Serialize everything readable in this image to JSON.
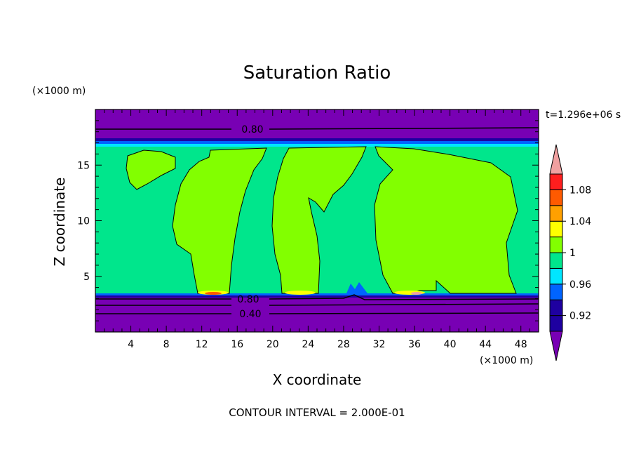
{
  "chart_data": {
    "type": "heatmap",
    "title": "Saturation Ratio",
    "xlabel": "X coordinate",
    "ylabel": "Z coordinate",
    "x_unit": "(×1000 m)",
    "y_unit": "(×1000 m)",
    "time_label": "t=1.296e+06 s",
    "footer": "CONTOUR INTERVAL = 2.000E-01",
    "xlim": [
      0,
      50
    ],
    "ylim": [
      0,
      20
    ],
    "x_ticks": [
      4,
      8,
      12,
      16,
      20,
      24,
      28,
      32,
      36,
      40,
      44,
      48
    ],
    "y_ticks": [
      5,
      10,
      15
    ],
    "x_tick_labels": [
      "4",
      "8",
      "12",
      "16",
      "20",
      "24",
      "28",
      "32",
      "36",
      "40",
      "44",
      "48"
    ],
    "y_tick_labels": [
      "5",
      "10",
      "15"
    ],
    "colorbar": {
      "levels": [
        0.9,
        0.92,
        0.94,
        0.96,
        0.98,
        1.0,
        1.02,
        1.04,
        1.06,
        1.08,
        1.1
      ],
      "tick_values": [
        0.92,
        0.96,
        1.0,
        1.04,
        1.08
      ],
      "tick_labels": [
        "0.92",
        "0.96",
        "1",
        "1.04",
        "1.08"
      ],
      "colors": [
        "#7800b4",
        "#1e00a0",
        "#0064ff",
        "#00e6ff",
        "#00e68c",
        "#82ff00",
        "#ffff00",
        "#ffa000",
        "#ff5a00",
        "#ff1e1e",
        "#f0a0a0"
      ]
    },
    "contour_labels": [
      {
        "text": "0.80",
        "x": 17.8,
        "z": 18.3
      },
      {
        "text": "0.80",
        "x": 17.6,
        "z": 2.9
      },
      {
        "text": "0.40",
        "x": 17.6,
        "z": 1.7
      }
    ],
    "regions": [
      {
        "value": 0.98,
        "desc": "moist layer z 3.2–16.8 km"
      },
      {
        "value": 1.0,
        "desc": "supersaturated columns near x 4–10, 11–20, 22–30, 32–47"
      },
      {
        "value": 0.9,
        "desc": "dry layers below 3.2 km and above 17 km"
      }
    ]
  }
}
